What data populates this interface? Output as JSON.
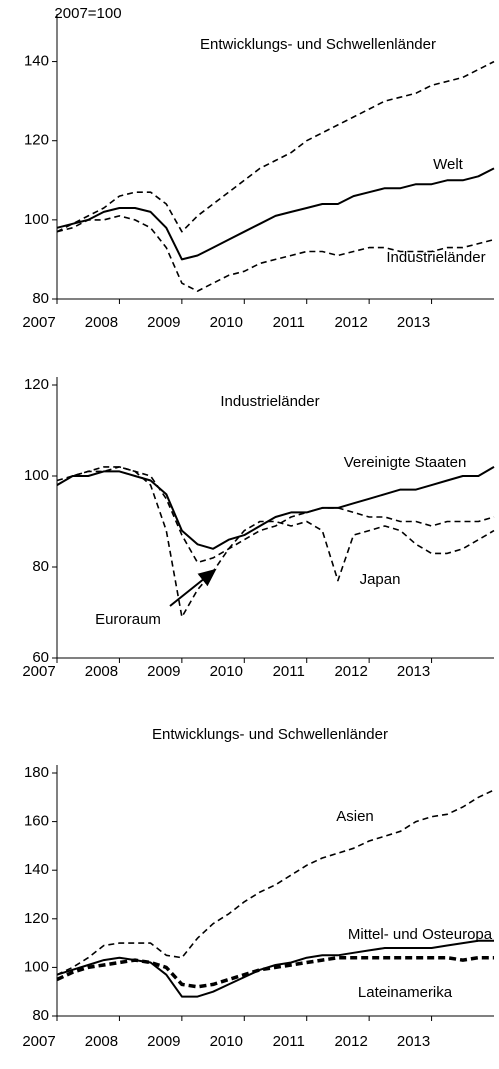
{
  "chart_data": [
    {
      "type": "line",
      "y_label": "2007=100",
      "x": [
        2007,
        2007.25,
        2007.5,
        2007.75,
        2008,
        2008.25,
        2008.5,
        2008.75,
        2009,
        2009.25,
        2009.5,
        2009.75,
        2010,
        2010.25,
        2010.5,
        2010.75,
        2011,
        2011.25,
        2011.5,
        2011.75,
        2012,
        2012.25,
        2012.5,
        2012.75,
        2013,
        2013.25,
        2013.5,
        2013.75,
        2014
      ],
      "xlim": [
        2007,
        2014
      ],
      "xticks": [
        2007,
        2008,
        2009,
        2010,
        2011,
        2012,
        2013
      ],
      "ylim": [
        80,
        150
      ],
      "yticks": [
        80,
        100,
        120,
        140
      ],
      "series": [
        {
          "name": "Entwicklungs- und Schwellenländer",
          "color": "#000000",
          "style": "dashed",
          "values": [
            97,
            99,
            101,
            103,
            106,
            107,
            107,
            104,
            97,
            101,
            104,
            107,
            110,
            113,
            115,
            117,
            120,
            122,
            124,
            126,
            128,
            130,
            131,
            132,
            134,
            135,
            136,
            138,
            140
          ]
        },
        {
          "name": "Welt",
          "color": "#000000",
          "style": "solid",
          "values": [
            98,
            99,
            100,
            102,
            103,
            103,
            102,
            98,
            90,
            91,
            93,
            95,
            97,
            99,
            101,
            102,
            103,
            104,
            104,
            106,
            107,
            108,
            108,
            109,
            109,
            110,
            110,
            111,
            113
          ]
        },
        {
          "name": "Industrieländer",
          "color": "#000000",
          "style": "dashed",
          "values": [
            97,
            98,
            100,
            100,
            101,
            100,
            98,
            93,
            84,
            82,
            84,
            86,
            87,
            89,
            90,
            91,
            92,
            92,
            91,
            92,
            93,
            93,
            92,
            92,
            92,
            93,
            93,
            94,
            95
          ]
        }
      ]
    },
    {
      "type": "line",
      "title": "Industrieländer",
      "x": [
        2007,
        2007.25,
        2007.5,
        2007.75,
        2008,
        2008.25,
        2008.5,
        2008.75,
        2009,
        2009.25,
        2009.5,
        2009.75,
        2010,
        2010.25,
        2010.5,
        2010.75,
        2011,
        2011.25,
        2011.5,
        2011.75,
        2012,
        2012.25,
        2012.5,
        2012.75,
        2013,
        2013.25,
        2013.5,
        2013.75,
        2014
      ],
      "xlim": [
        2007,
        2014
      ],
      "xticks": [
        2007,
        2008,
        2009,
        2010,
        2011,
        2012,
        2013
      ],
      "ylim": [
        60,
        120
      ],
      "yticks": [
        60,
        80,
        100,
        120
      ],
      "series": [
        {
          "name": "Vereinigte Staaten",
          "color": "#000000",
          "style": "solid",
          "values": [
            98,
            100,
            100,
            101,
            101,
            100,
            99,
            96,
            88,
            85,
            84,
            86,
            87,
            89,
            91,
            92,
            92,
            93,
            93,
            94,
            95,
            96,
            97,
            97,
            98,
            99,
            100,
            100,
            102
          ]
        },
        {
          "name": "Euroraum",
          "color": "#000000",
          "style": "dashed",
          "values": [
            98,
            100,
            101,
            102,
            102,
            101,
            100,
            95,
            87,
            81,
            82,
            84,
            86,
            88,
            89,
            91,
            92,
            93,
            93,
            92,
            91,
            91,
            90,
            90,
            89,
            90,
            90,
            90,
            91
          ]
        },
        {
          "name": "Japan",
          "color": "#000000",
          "style": "dashed",
          "values": [
            99,
            100,
            101,
            101,
            102,
            101,
            98,
            88,
            69,
            75,
            79,
            84,
            88,
            90,
            90,
            89,
            90,
            88,
            77,
            87,
            88,
            89,
            88,
            85,
            83,
            83,
            84,
            86,
            88
          ]
        }
      ]
    },
    {
      "type": "line",
      "title": "Entwicklungs- und Schwellenländer",
      "x": [
        2007,
        2007.25,
        2007.5,
        2007.75,
        2008,
        2008.25,
        2008.5,
        2008.75,
        2009,
        2009.25,
        2009.5,
        2009.75,
        2010,
        2010.25,
        2010.5,
        2010.75,
        2011,
        2011.25,
        2011.5,
        2011.75,
        2012,
        2012.25,
        2012.5,
        2012.75,
        2013,
        2013.25,
        2013.5,
        2013.75,
        2014
      ],
      "xlim": [
        2007,
        2014
      ],
      "xticks": [
        2007,
        2008,
        2009,
        2010,
        2011,
        2012,
        2013
      ],
      "ylim": [
        80,
        180
      ],
      "yticks": [
        80,
        100,
        120,
        140,
        160,
        180
      ],
      "series": [
        {
          "name": "Asien",
          "color": "#000000",
          "style": "dashed",
          "values": [
            97,
            100,
            104,
            109,
            110,
            110,
            110,
            105,
            104,
            112,
            118,
            122,
            127,
            131,
            134,
            138,
            142,
            145,
            147,
            149,
            152,
            154,
            156,
            160,
            162,
            163,
            166,
            170,
            173
          ]
        },
        {
          "name": "Mittel- und Osteuropa",
          "color": "#000000",
          "style": "solid",
          "values": [
            97,
            99,
            101,
            103,
            104,
            103,
            102,
            97,
            88,
            88,
            90,
            93,
            96,
            99,
            101,
            102,
            104,
            105,
            105,
            106,
            107,
            108,
            108,
            108,
            108,
            109,
            110,
            111,
            111
          ]
        },
        {
          "name": "Lateinamerika",
          "color": "#000000",
          "style": "dashed-bold",
          "values": [
            95,
            98,
            100,
            101,
            102,
            103,
            102,
            100,
            93,
            92,
            93,
            95,
            97,
            99,
            100,
            101,
            102,
            103,
            104,
            104,
            104,
            104,
            104,
            104,
            104,
            104,
            103,
            104,
            104
          ]
        }
      ]
    }
  ]
}
